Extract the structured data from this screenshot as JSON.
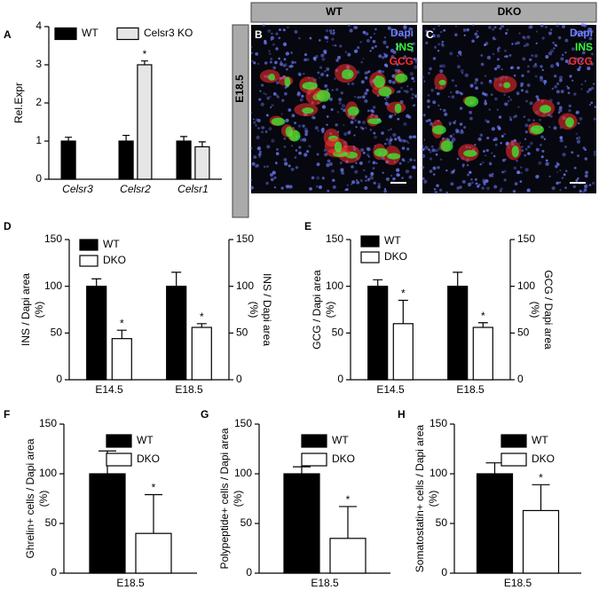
{
  "chart_data": [
    {
      "type": "bar",
      "panel_label": "A",
      "ylabel": [
        "Rel.Expr"
      ],
      "categories": [
        "Celsr3",
        "Celsr2",
        "Celsr1"
      ],
      "series": [
        {
          "name": "WT",
          "color": "#000000",
          "values": [
            1,
            1,
            1
          ],
          "errors": [
            0.1,
            0.15,
            0.12
          ]
        },
        {
          "name": "Celsr3 KO",
          "color": "#e6e6e6",
          "values": [
            null,
            3.0,
            0.85
          ],
          "errors": [
            null,
            0.1,
            0.13
          ],
          "significance": [
            null,
            "*",
            null
          ]
        }
      ],
      "ylim": [
        0,
        4
      ],
      "yticks": [
        0,
        1,
        2,
        3,
        4
      ]
    },
    {
      "type": "bar",
      "panel_label": "D",
      "ylabel": [
        "INS / Dapi area",
        "(%)"
      ],
      "y2label": [
        "INS / Dapi area",
        "(%)"
      ],
      "categories": [
        "E14.5",
        "E18.5"
      ],
      "series": [
        {
          "name": "WT",
          "color": "#000000",
          "values": [
            100,
            100
          ],
          "errors": [
            8,
            15
          ]
        },
        {
          "name": "DKO",
          "color": "#ffffff",
          "values": [
            44,
            56
          ],
          "errors": [
            9,
            4
          ],
          "significance": [
            "*",
            "*"
          ]
        }
      ],
      "ylim": [
        0,
        150
      ],
      "yticks": [
        0,
        50,
        100,
        150
      ],
      "y2lim": [
        0,
        150
      ],
      "y2ticks": [
        0,
        50,
        100,
        150
      ]
    },
    {
      "type": "bar",
      "panel_label": "E",
      "ylabel": [
        "GCG / Dapi area",
        "(%)"
      ],
      "y2label": [
        "GCG / Dapi area",
        "(%)"
      ],
      "categories": [
        "E14.5",
        "E18.5"
      ],
      "series": [
        {
          "name": "WT",
          "color": "#000000",
          "values": [
            100,
            100
          ],
          "errors": [
            7,
            15
          ]
        },
        {
          "name": "DKO",
          "color": "#ffffff",
          "values": [
            60,
            56
          ],
          "errors": [
            25,
            5
          ],
          "significance": [
            "*",
            "*"
          ]
        }
      ],
      "ylim": [
        0,
        150
      ],
      "yticks": [
        0,
        50,
        100,
        150
      ],
      "y2lim": [
        0,
        150
      ],
      "y2ticks": [
        0,
        50,
        100,
        150
      ]
    },
    {
      "type": "bar",
      "panel_label": "F",
      "ylabel": [
        "Ghrelin+ cells / Dapi area",
        "(%)"
      ],
      "categories": [
        "E18.5"
      ],
      "series": [
        {
          "name": "WT",
          "color": "#000000",
          "values": [
            100
          ],
          "errors": [
            23
          ]
        },
        {
          "name": "DKO",
          "color": "#ffffff",
          "values": [
            40
          ],
          "errors": [
            39
          ],
          "significance": [
            "*"
          ]
        }
      ],
      "ylim": [
        0,
        150
      ],
      "yticks": [
        0,
        50,
        100,
        150
      ]
    },
    {
      "type": "bar",
      "panel_label": "G",
      "ylabel": [
        "Polypeptide+ cells / Dapi area",
        "(%)"
      ],
      "categories": [
        "E18.5"
      ],
      "series": [
        {
          "name": "WT",
          "color": "#000000",
          "values": [
            100
          ],
          "errors": [
            7
          ]
        },
        {
          "name": "DKO",
          "color": "#ffffff",
          "values": [
            35
          ],
          "errors": [
            32
          ],
          "significance": [
            "*"
          ]
        }
      ],
      "ylim": [
        0,
        150
      ],
      "yticks": [
        0,
        50,
        100,
        150
      ]
    },
    {
      "type": "bar",
      "panel_label": "H",
      "ylabel": [
        "Somatostatin+ cells / Dapi area",
        "(%)"
      ],
      "categories": [
        "E18.5"
      ],
      "series": [
        {
          "name": "WT",
          "color": "#000000",
          "values": [
            100
          ],
          "errors": [
            11
          ]
        },
        {
          "name": "DKO",
          "color": "#ffffff",
          "values": [
            63
          ],
          "errors": [
            26
          ],
          "significance": [
            "*"
          ]
        }
      ],
      "ylim": [
        0,
        150
      ],
      "yticks": [
        0,
        50,
        100,
        150
      ]
    }
  ],
  "images": {
    "row_label": "E18.5",
    "channels": [
      {
        "name": "Dapi",
        "color": "#7080ff"
      },
      {
        "name": "INS",
        "color": "#33ff33"
      },
      {
        "name": "GCG",
        "color": "#ff3030"
      }
    ],
    "panels": [
      {
        "letter": "B",
        "title": "WT"
      },
      {
        "letter": "C",
        "title": "DKO"
      }
    ]
  }
}
